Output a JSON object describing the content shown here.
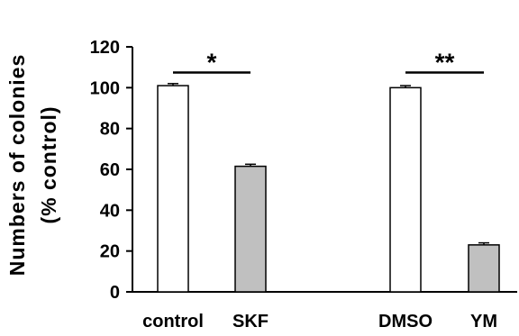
{
  "chart_data": {
    "type": "bar",
    "title": "",
    "xlabel": "",
    "ylabel": [
      "Numbers of colonies",
      "(% control)"
    ],
    "ylim": [
      0,
      120
    ],
    "yticks": [
      "0",
      "20",
      "40",
      "60",
      "80",
      "100",
      "120"
    ],
    "categories": [
      "control",
      "SKF",
      "DMSO",
      "YM"
    ],
    "values": [
      101,
      61.5,
      100,
      23
    ],
    "errors": [
      1,
      1,
      1,
      1
    ],
    "bar_colors": [
      "#ffffff",
      "#c0c0c0",
      "#ffffff",
      "#c0c0c0"
    ],
    "grid": false,
    "significance": [
      {
        "from": "control",
        "to": "SKF",
        "label": "*",
        "y": 103
      },
      {
        "from": "DMSO",
        "to": "YM",
        "label": "**",
        "y": 103
      }
    ]
  }
}
